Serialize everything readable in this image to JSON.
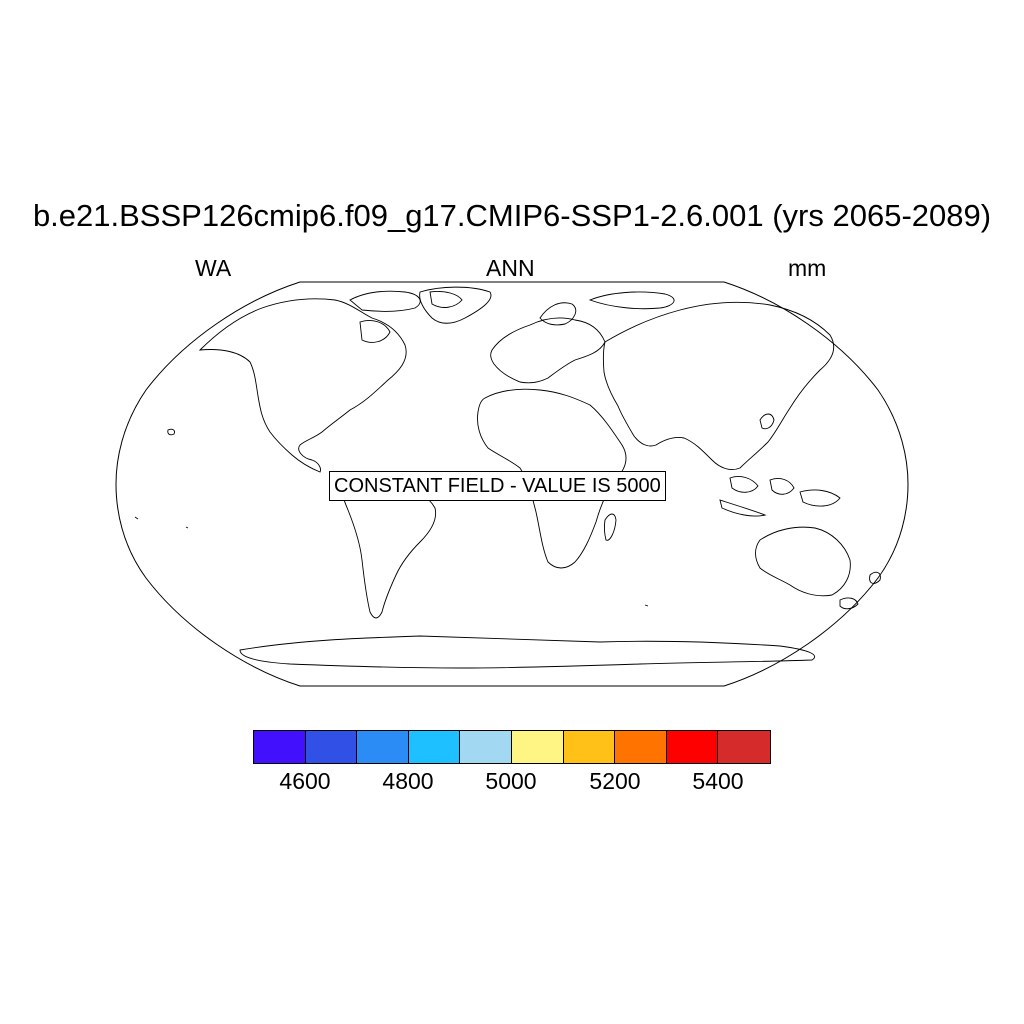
{
  "title": "b.e21.BSSP126cmip6.f09_g17.CMIP6-SSP1-2.6.001 (yrs 2065-2089)",
  "left_label": "WA",
  "center_label": "ANN",
  "right_label": "mm",
  "annotation": "CONSTANT FIELD - VALUE IS 5000",
  "projection": "Robinson",
  "colorbar": {
    "colors": [
      "#4210fc",
      "#3050e6",
      "#2b8cf5",
      "#1ec0ff",
      "#a2d8f2",
      "#fff584",
      "#ffc118",
      "#ff7300",
      "#ff0000",
      "#d62b2b"
    ],
    "ticks": [
      "4600",
      "4800",
      "5000",
      "5200",
      "5400"
    ]
  }
}
